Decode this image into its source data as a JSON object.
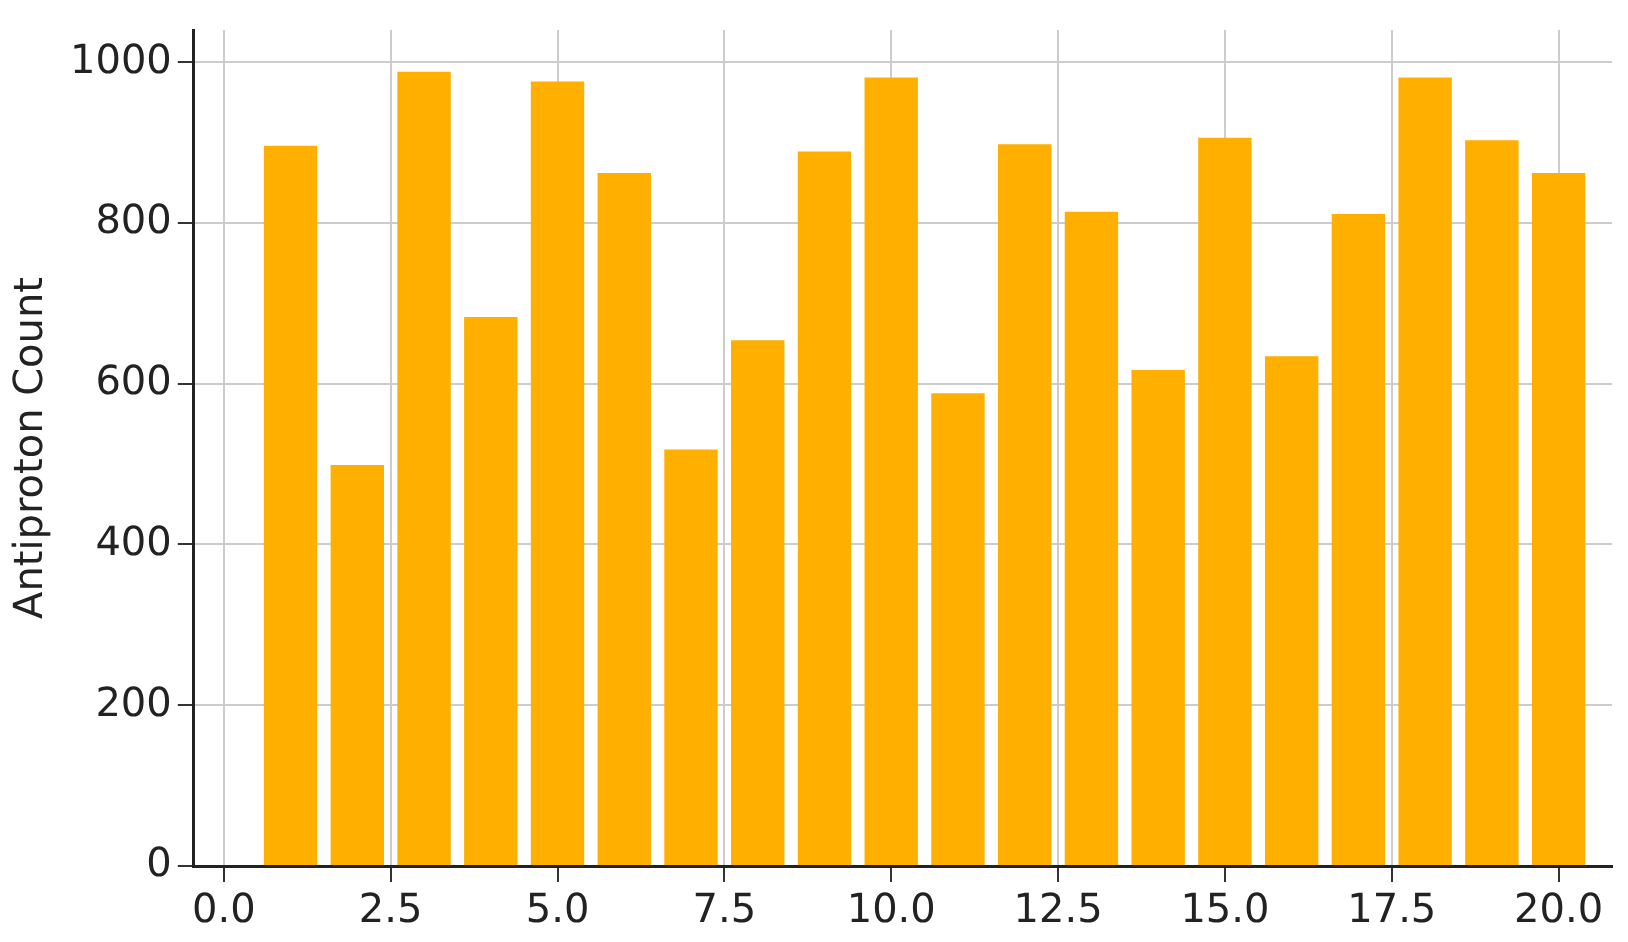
{
  "chart_data": {
    "type": "bar",
    "ylabel": "Antiproton Count",
    "x": [
      1,
      2,
      3,
      4,
      5,
      6,
      7,
      8,
      9,
      10,
      11,
      12,
      13,
      14,
      15,
      16,
      17,
      18,
      19,
      20
    ],
    "values": [
      896,
      499,
      988,
      683,
      976,
      862,
      518,
      654,
      889,
      981,
      588,
      898,
      814,
      617,
      906,
      634,
      811,
      981,
      903,
      862
    ],
    "color": "#ffaf00",
    "xlim": [
      -0.45,
      20.8
    ],
    "xticks": [
      {
        "value": 0,
        "label": "0.0"
      },
      {
        "value": 2.5,
        "label": "2.5"
      },
      {
        "value": 5,
        "label": "5.0"
      },
      {
        "value": 7.5,
        "label": "7.5"
      },
      {
        "value": 10,
        "label": "10.0"
      },
      {
        "value": 12.5,
        "label": "12.5"
      },
      {
        "value": 15,
        "label": "15.0"
      },
      {
        "value": 17.5,
        "label": "17.5"
      },
      {
        "value": 20,
        "label": "20.0"
      }
    ],
    "ylim": [
      0,
      1040
    ],
    "yticks": [
      0,
      200,
      400,
      600,
      800,
      1000
    ],
    "grid": true
  }
}
